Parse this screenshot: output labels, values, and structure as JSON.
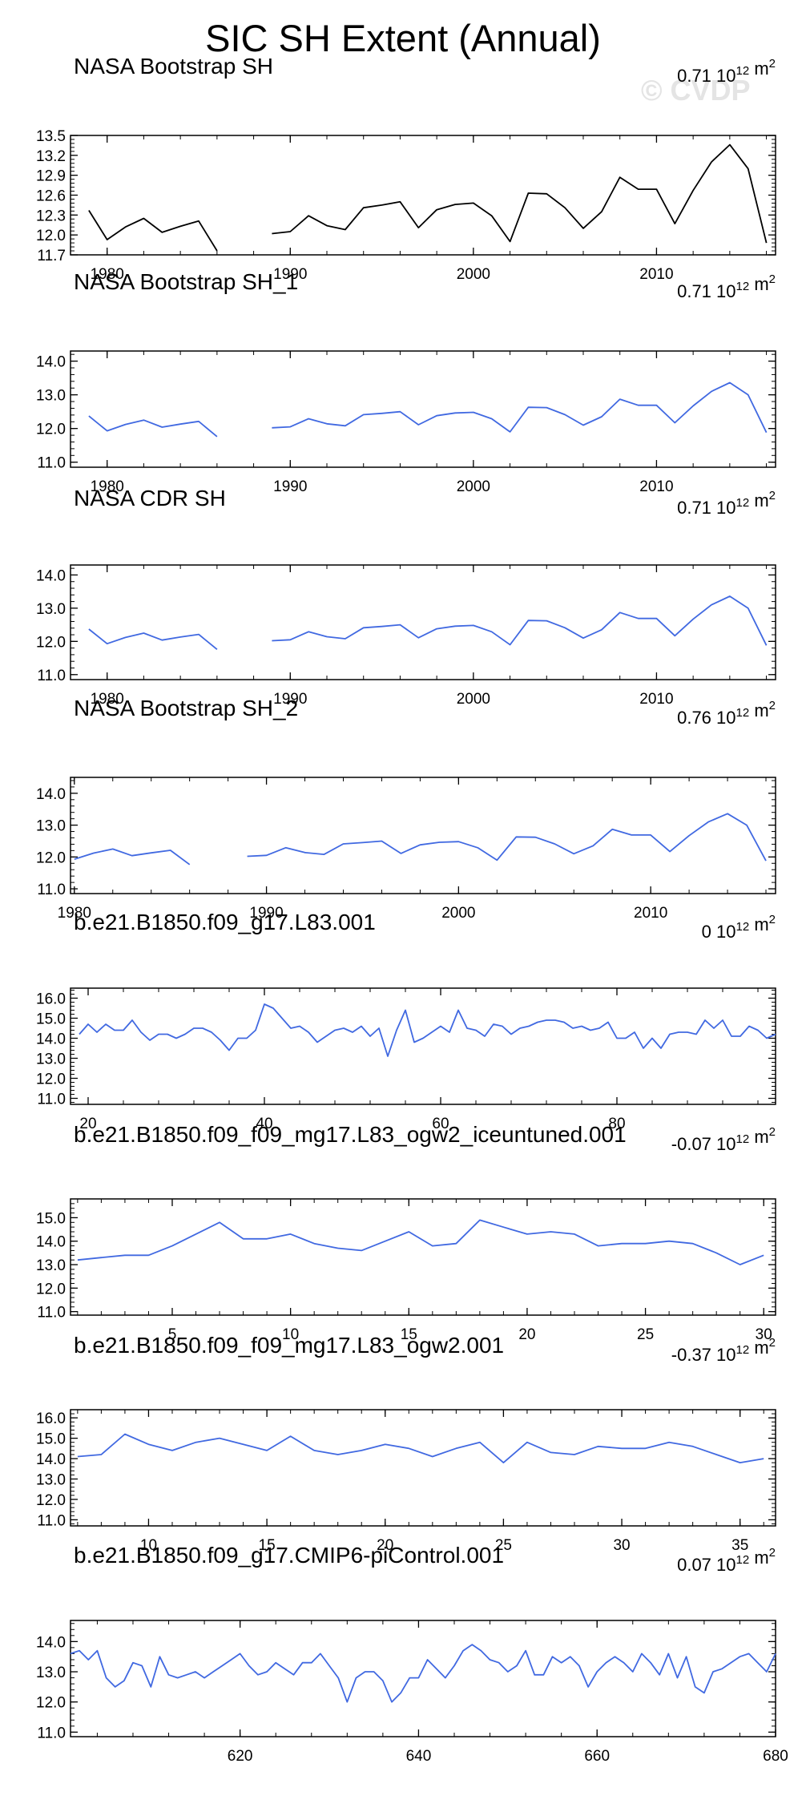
{
  "figure": {
    "title": "SIC SH Extent (Annual)",
    "watermark": "© CVDP",
    "units": "10",
    "units_exp": "12",
    "units_suffix": " m",
    "units_suffix_exp": "2"
  },
  "chart_data": [
    {
      "type": "line",
      "title": "NASA Bootstrap SH",
      "stat": "0.71",
      "color": "#000000",
      "xlim": [
        1978,
        2016.5
      ],
      "ylim": [
        11.7,
        13.5
      ],
      "xticks": [
        1980,
        1990,
        2000,
        2010
      ],
      "yticks": [
        11.7,
        12.0,
        12.3,
        12.6,
        12.9,
        13.2,
        13.5
      ],
      "ytick_labels": [
        "11.7",
        "12.0",
        "12.3",
        "12.6",
        "12.9",
        "13.2",
        "13.5"
      ],
      "x0": 1979,
      "values": [
        12.37,
        11.93,
        12.12,
        12.25,
        12.04,
        12.13,
        12.21,
        11.76,
        null,
        null,
        12.02,
        12.05,
        12.29,
        12.14,
        12.08,
        12.41,
        12.45,
        12.5,
        12.11,
        12.38,
        12.46,
        12.48,
        12.29,
        11.9,
        12.63,
        12.62,
        12.41,
        12.1,
        12.35,
        12.87,
        12.69,
        12.69,
        12.17,
        12.67,
        13.1,
        13.36,
        13.0,
        11.88
      ]
    },
    {
      "type": "line",
      "title": "NASA Bootstrap SH_1",
      "stat": "0.71",
      "color": "#4169e1",
      "xlim": [
        1978,
        2016.5
      ],
      "ylim": [
        10.85,
        14.3
      ],
      "xticks": [
        1980,
        1990,
        2000,
        2010
      ],
      "yticks": [
        11.0,
        12.0,
        13.0,
        14.0
      ],
      "ytick_labels": [
        "11.0",
        "12.0",
        "13.0",
        "14.0"
      ],
      "x0": 1979,
      "values": [
        12.37,
        11.93,
        12.12,
        12.25,
        12.04,
        12.13,
        12.21,
        11.76,
        null,
        null,
        12.02,
        12.05,
        12.29,
        12.14,
        12.08,
        12.41,
        12.45,
        12.5,
        12.11,
        12.38,
        12.46,
        12.48,
        12.29,
        11.9,
        12.63,
        12.62,
        12.41,
        12.1,
        12.35,
        12.87,
        12.69,
        12.69,
        12.17,
        12.67,
        13.1,
        13.36,
        13.0,
        11.88
      ]
    },
    {
      "type": "line",
      "title": "NASA CDR SH",
      "stat": "0.71",
      "color": "#4169e1",
      "xlim": [
        1978,
        2016.5
      ],
      "ylim": [
        10.85,
        14.3
      ],
      "xticks": [
        1980,
        1990,
        2000,
        2010
      ],
      "yticks": [
        11.0,
        12.0,
        13.0,
        14.0
      ],
      "ytick_labels": [
        "11.0",
        "12.0",
        "13.0",
        "14.0"
      ],
      "x0": 1979,
      "values": [
        12.37,
        11.93,
        12.12,
        12.25,
        12.04,
        12.13,
        12.21,
        11.76,
        null,
        null,
        12.02,
        12.05,
        12.29,
        12.14,
        12.08,
        12.41,
        12.45,
        12.5,
        12.11,
        12.38,
        12.46,
        12.48,
        12.29,
        11.9,
        12.63,
        12.62,
        12.41,
        12.1,
        12.35,
        12.87,
        12.69,
        12.69,
        12.17,
        12.67,
        13.1,
        13.36,
        13.0,
        11.88
      ]
    },
    {
      "type": "line",
      "title": "NASA Bootstrap SH_2",
      "stat": "0.76",
      "color": "#4169e1",
      "xlim": [
        1979.8,
        2016.5
      ],
      "ylim": [
        10.85,
        14.5
      ],
      "xticks": [
        1980,
        1990,
        2000,
        2010
      ],
      "yticks": [
        11.0,
        12.0,
        13.0,
        14.0
      ],
      "ytick_labels": [
        "11.0",
        "12.0",
        "13.0",
        "14.0"
      ],
      "x0": 1980,
      "values": [
        11.93,
        12.12,
        12.25,
        12.04,
        12.13,
        12.21,
        11.76,
        null,
        null,
        12.02,
        12.05,
        12.29,
        12.14,
        12.08,
        12.41,
        12.45,
        12.5,
        12.11,
        12.38,
        12.46,
        12.48,
        12.29,
        11.9,
        12.63,
        12.62,
        12.41,
        12.1,
        12.35,
        12.87,
        12.69,
        12.69,
        12.17,
        12.67,
        13.1,
        13.36,
        13.0,
        11.88
      ]
    },
    {
      "type": "line",
      "title": "b.e21.B1850.f09_g17.L83.001",
      "stat": "0",
      "color": "#4169e1",
      "xlim": [
        18,
        98
      ],
      "ylim": [
        10.7,
        16.5
      ],
      "xticks": [
        20,
        40,
        60,
        80
      ],
      "yticks": [
        11.0,
        12.0,
        13.0,
        14.0,
        15.0,
        16.0
      ],
      "ytick_labels": [
        "11.0",
        "12.0",
        "13.0",
        "14.0",
        "15.0",
        "16.0"
      ],
      "x0": 19,
      "values": [
        14.2,
        14.7,
        14.3,
        14.7,
        14.4,
        14.4,
        14.9,
        14.3,
        13.9,
        14.2,
        14.2,
        14.0,
        14.2,
        14.5,
        14.5,
        14.3,
        13.9,
        13.4,
        14.0,
        14.0,
        14.4,
        15.7,
        15.5,
        15.0,
        14.5,
        14.6,
        14.3,
        13.8,
        14.1,
        14.4,
        14.5,
        14.3,
        14.6,
        14.1,
        14.5,
        13.1,
        14.4,
        15.4,
        13.8,
        14.0,
        14.3,
        14.6,
        14.3,
        15.4,
        14.5,
        14.4,
        14.1,
        14.7,
        14.6,
        14.2,
        14.5,
        14.6,
        14.8,
        14.9,
        14.9,
        14.8,
        14.5,
        14.6,
        14.4,
        14.5,
        14.8,
        14.0,
        14.0,
        14.3,
        13.5,
        14.0,
        13.5,
        14.2,
        14.3,
        14.3,
        14.2,
        14.9,
        14.5,
        14.9,
        14.1,
        14.1,
        14.6,
        14.4,
        14.0,
        14.2
      ]
    },
    {
      "type": "line",
      "title": "b.e21.B1850.f09_f09_mg17.L83_ogw2_iceuntuned.001",
      "stat": "-0.07",
      "color": "#4169e1",
      "xlim": [
        0.7,
        30.5
      ],
      "ylim": [
        10.85,
        15.8
      ],
      "xticks": [
        5,
        10,
        15,
        20,
        25,
        30
      ],
      "yticks": [
        11.0,
        12.0,
        13.0,
        14.0,
        15.0
      ],
      "ytick_labels": [
        "11.0",
        "12.0",
        "13.0",
        "14.0",
        "15.0"
      ],
      "x0": 1,
      "values": [
        13.2,
        13.3,
        13.4,
        13.4,
        13.8,
        14.3,
        14.8,
        14.1,
        14.1,
        14.3,
        13.9,
        13.7,
        13.6,
        14.0,
        14.4,
        13.8,
        13.9,
        14.9,
        14.6,
        14.3,
        14.4,
        14.3,
        13.8,
        13.9,
        13.9,
        14.0,
        13.9,
        13.5,
        13.0,
        13.4
      ]
    },
    {
      "type": "line",
      "title": "b.e21.B1850.f09_f09_mg17.L83_ogw2.001",
      "stat": "-0.37",
      "color": "#4169e1",
      "xlim": [
        6.7,
        36.5
      ],
      "ylim": [
        10.7,
        16.4
      ],
      "xticks": [
        10,
        15,
        20,
        25,
        30,
        35
      ],
      "yticks": [
        11.0,
        12.0,
        13.0,
        14.0,
        15.0,
        16.0
      ],
      "ytick_labels": [
        "11.0",
        "12.0",
        "13.0",
        "14.0",
        "15.0",
        "16.0"
      ],
      "x0": 7,
      "values": [
        14.1,
        14.2,
        15.2,
        14.7,
        14.4,
        14.8,
        15.0,
        14.7,
        14.4,
        15.1,
        14.4,
        14.2,
        14.4,
        14.7,
        14.5,
        14.1,
        14.5,
        14.8,
        13.8,
        14.8,
        14.3,
        14.2,
        14.6,
        14.5,
        14.5,
        14.8,
        14.6,
        14.2,
        13.8,
        14.0
      ]
    },
    {
      "type": "line",
      "title": "b.e21.B1850.f09_g17.CMIP6-piControl.001",
      "stat": "0.07",
      "color": "#4169e1",
      "xlim": [
        601,
        680
      ],
      "ylim": [
        10.85,
        14.7
      ],
      "xticks": [
        620,
        640,
        660,
        680
      ],
      "yticks": [
        11.0,
        12.0,
        13.0,
        14.0
      ],
      "ytick_labels": [
        "11.0",
        "12.0",
        "13.0",
        "14.0"
      ],
      "x0": 601,
      "values": [
        13.6,
        13.7,
        13.4,
        13.7,
        12.8,
        12.5,
        12.7,
        13.3,
        13.2,
        12.5,
        13.5,
        12.9,
        12.8,
        12.9,
        13.0,
        12.8,
        13.0,
        13.2,
        13.4,
        13.6,
        13.2,
        12.9,
        13.0,
        13.3,
        13.1,
        12.9,
        13.3,
        13.3,
        13.6,
        13.2,
        12.8,
        12.0,
        12.8,
        13.0,
        13.0,
        12.7,
        12.0,
        12.3,
        12.8,
        12.8,
        13.4,
        13.1,
        12.8,
        13.2,
        13.7,
        13.9,
        13.7,
        13.4,
        13.3,
        13.0,
        13.2,
        13.7,
        12.9,
        12.9,
        13.5,
        13.3,
        13.5,
        13.2,
        12.5,
        13.0,
        13.3,
        13.5,
        13.3,
        13.0,
        13.6,
        13.3,
        12.9,
        13.6,
        12.8,
        13.5,
        12.5,
        12.3,
        13.0,
        13.1,
        13.3,
        13.5,
        13.6,
        13.3,
        13.0,
        13.6
      ]
    }
  ]
}
